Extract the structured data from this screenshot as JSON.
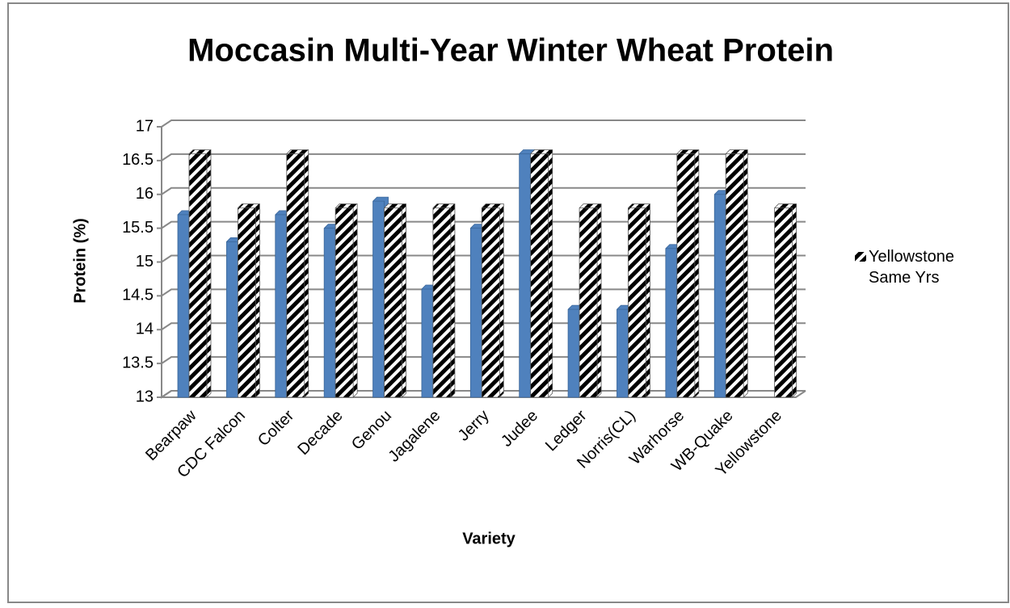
{
  "chart_data": {
    "type": "bar3d",
    "title": "Moccasin Multi-Year Winter Wheat Protein",
    "x_label": "Variety",
    "y_label": "Protein (%)",
    "categories": [
      "Bearpaw",
      "CDC Falcon",
      "Colter",
      "Decade",
      "Genou",
      "Jagalene",
      "Jerry",
      "Judee",
      "Ledger",
      "Norris(CL)",
      "Warhorse",
      "WB-Quake",
      "Yellowstone"
    ],
    "series": [
      {
        "color": "#4f81bd",
        "values": [
          15.7,
          15.3,
          15.7,
          15.5,
          15.9,
          14.6,
          15.5,
          16.6,
          14.3,
          14.3,
          15.2,
          16.0,
          null
        ]
      },
      {
        "name": "Yellowstone Same Yrs",
        "color": "hatch",
        "values": [
          16.6,
          15.8,
          16.6,
          15.8,
          15.8,
          15.8,
          15.8,
          16.6,
          15.8,
          15.8,
          16.6,
          16.6,
          15.8
        ]
      }
    ],
    "ylim": [
      13,
      17
    ],
    "yticks": [
      13,
      13.5,
      14,
      14.5,
      15,
      15.5,
      16,
      16.5,
      17
    ],
    "grid": true,
    "legend": "right"
  }
}
